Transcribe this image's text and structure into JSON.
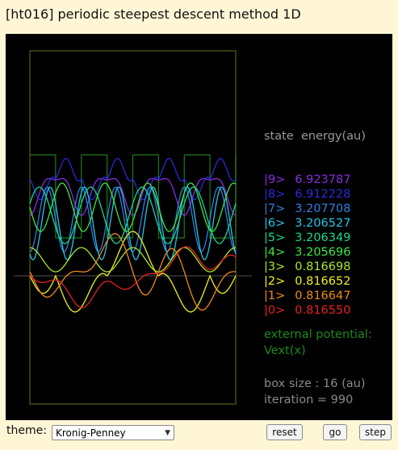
{
  "title": "[ht016] periodic steepest descent method 1D",
  "legend": {
    "header_state": "state",
    "header_energy": "energy(au)",
    "states": [
      {
        "label": "|9>",
        "energy": "6.923787",
        "color": "#8a2be2"
      },
      {
        "label": "|8>",
        "energy": "6.912228",
        "color": "#2a2ad8"
      },
      {
        "label": "|7>",
        "energy": "3.207708",
        "color": "#2f7fe0"
      },
      {
        "label": "|6>",
        "energy": "3.206527",
        "color": "#22c8e8"
      },
      {
        "label": "|5>",
        "energy": "3.206349",
        "color": "#18d890"
      },
      {
        "label": "|4>",
        "energy": "3.205696",
        "color": "#3ee83e"
      },
      {
        "label": "|3>",
        "energy": "0.816698",
        "color": "#a8e82a"
      },
      {
        "label": "|2>",
        "energy": "0.816652",
        "color": "#f0f020"
      },
      {
        "label": "|1>",
        "energy": "0.816647",
        "color": "#f08a18"
      },
      {
        "label": "|0>",
        "energy": "0.816550",
        "color": "#e82020"
      }
    ]
  },
  "potential": {
    "line1": "external potential:",
    "line2": "Vext(x)",
    "color": "#1d7a1d"
  },
  "info": {
    "box_size": "box size : 16 (au)",
    "iteration": "iteration = 990"
  },
  "controls": {
    "theme_label": "theme:",
    "theme_value": "Kronig-Penney",
    "reset_label": "reset",
    "go_label": "go",
    "step_label": "step"
  }
}
